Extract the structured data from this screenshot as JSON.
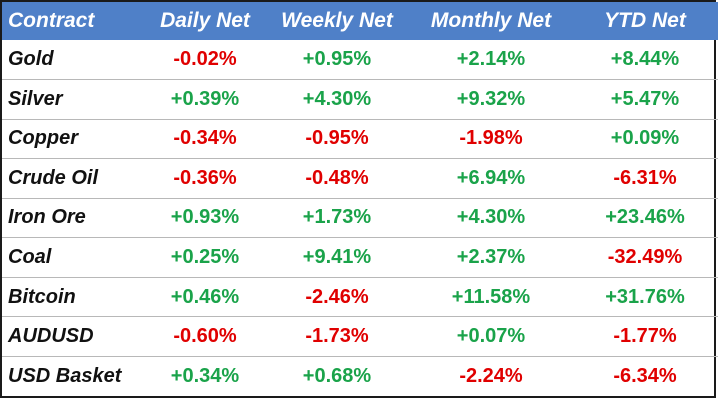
{
  "colors": {
    "header_bg": "#4f80c8",
    "header_text": "#ffffff",
    "positive": "#1aa34a",
    "negative": "#e00000",
    "name_text": "#111111"
  },
  "table": {
    "headers": [
      "Contract",
      "Daily Net",
      "Weekly Net",
      "Monthly Net",
      "YTD Net"
    ],
    "rows": [
      {
        "name": "Gold",
        "values": [
          "-0.02%",
          "+0.95%",
          "+2.14%",
          "+8.44%"
        ]
      },
      {
        "name": "Silver",
        "values": [
          "+0.39%",
          "+4.30%",
          "+9.32%",
          "+5.47%"
        ]
      },
      {
        "name": "Copper",
        "values": [
          "-0.34%",
          "-0.95%",
          "-1.98%",
          "+0.09%"
        ]
      },
      {
        "name": "Crude Oil",
        "values": [
          "-0.36%",
          "-0.48%",
          "+6.94%",
          "-6.31%"
        ]
      },
      {
        "name": "Iron Ore",
        "values": [
          "+0.93%",
          "+1.73%",
          "+4.30%",
          "+23.46%"
        ]
      },
      {
        "name": "Coal",
        "values": [
          "+0.25%",
          "+9.41%",
          "+2.37%",
          "-32.49%"
        ]
      },
      {
        "name": "Bitcoin",
        "values": [
          "+0.46%",
          "-2.46%",
          "+11.58%",
          "+31.76%"
        ]
      },
      {
        "name": "AUDUSD",
        "values": [
          "-0.60%",
          "-1.73%",
          "+0.07%",
          "-1.77%"
        ]
      },
      {
        "name": "USD Basket",
        "values": [
          "+0.34%",
          "+0.68%",
          "-2.24%",
          "-6.34%"
        ]
      }
    ]
  }
}
